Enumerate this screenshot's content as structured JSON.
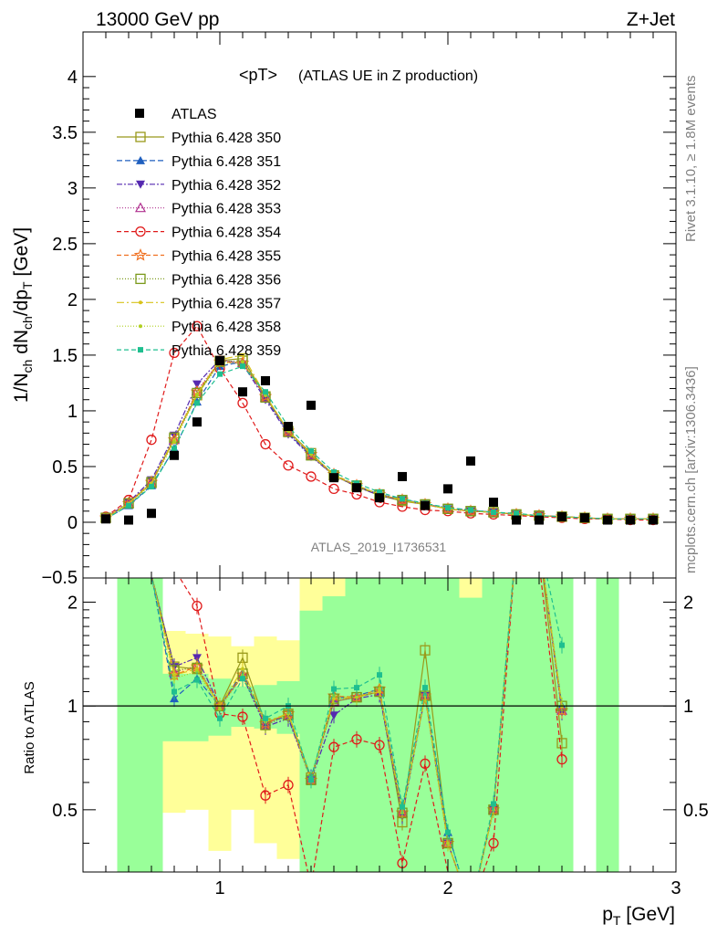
{
  "header": {
    "left": "13000 GeV pp",
    "right": "Z+Jet"
  },
  "side_labels": {
    "rivet": "Rivet 3.1.10, ≥ 1.8M events",
    "mcplots": "mcplots.cern.ch [arXiv:1306.3436]"
  },
  "chart_data": [
    {
      "type": "scatter",
      "title": "<pT> (ATLAS UE in Z production)",
      "title_main": "<pT>",
      "title_sub": " (ATLAS UE in Z production)",
      "xlabel": "p_T [GeV]",
      "ylabel": "1/N_ch dN_ch/dp_T [GeV]",
      "xlim": [
        0.4,
        3.0
      ],
      "ylim": [
        -0.5,
        4.4
      ],
      "yticks": [
        "0",
        "0.5",
        "1",
        "1.5",
        "2",
        "2.5",
        "3",
        "3.5",
        "4"
      ],
      "ytick_top": "−0.5",
      "watermark": "ATLAS_2019_I1736531",
      "legend_position": "top-left",
      "x": [
        0.5,
        0.6,
        0.7,
        0.8,
        0.9,
        1.0,
        1.1,
        1.2,
        1.3,
        1.4,
        1.5,
        1.6,
        1.7,
        1.8,
        1.9,
        2.0,
        2.1,
        2.2,
        2.3,
        2.4,
        2.5,
        2.6,
        2.7,
        2.8,
        2.9
      ],
      "atlas": [
        0.03,
        0.02,
        0.08,
        0.6,
        0.9,
        1.45,
        1.17,
        1.27,
        0.86,
        1.05,
        0.4,
        0.31,
        0.22,
        0.41,
        0.15,
        0.3,
        0.55,
        0.18,
        0.02,
        0.02,
        0.05,
        0.04,
        0.02,
        0.02,
        0.02
      ],
      "series": [
        {
          "name": "Pythia 6.428 350",
          "color": "#99991a",
          "marker": "open-square",
          "dash": "",
          "values": [
            0.04,
            0.17,
            0.35,
            0.75,
            1.14,
            1.45,
            1.47,
            1.13,
            0.82,
            0.62,
            0.42,
            0.32,
            0.24,
            0.19,
            0.16,
            0.12,
            0.1,
            0.09,
            0.07,
            0.06,
            0.05,
            0.04,
            0.03,
            0.03,
            0.03
          ]
        },
        {
          "name": "Pythia 6.428 351",
          "color": "#1f5fbf",
          "marker": "filled-triangle-up",
          "dash": "6,3",
          "values": [
            0.03,
            0.15,
            0.33,
            0.66,
            1.08,
            1.4,
            1.44,
            1.12,
            0.8,
            0.6,
            0.42,
            0.33,
            0.25,
            0.21,
            0.16,
            0.13,
            0.11,
            0.09,
            0.07,
            0.06,
            0.05,
            0.04,
            0.03,
            0.03,
            0.03
          ]
        },
        {
          "name": "Pythia 6.428 352",
          "color": "#5529b0",
          "marker": "filled-triangle-down",
          "dash": "6,2,2,2",
          "values": [
            0.04,
            0.18,
            0.38,
            0.78,
            1.24,
            1.46,
            1.42,
            1.1,
            0.79,
            0.59,
            0.42,
            0.32,
            0.24,
            0.2,
            0.16,
            0.12,
            0.1,
            0.09,
            0.07,
            0.06,
            0.05,
            0.04,
            0.03,
            0.03,
            0.03
          ]
        },
        {
          "name": "Pythia 6.428 353",
          "color": "#b0308f",
          "marker": "open-triangle-up",
          "dash": "1,2",
          "values": [
            0.04,
            0.17,
            0.36,
            0.74,
            1.18,
            1.45,
            1.43,
            1.12,
            0.81,
            0.6,
            0.42,
            0.33,
            0.25,
            0.2,
            0.16,
            0.12,
            0.1,
            0.09,
            0.07,
            0.06,
            0.05,
            0.04,
            0.03,
            0.03,
            0.03
          ]
        },
        {
          "name": "Pythia 6.428 354",
          "color": "#e01a1a",
          "marker": "open-circle",
          "dash": "5,3",
          "values": [
            0.05,
            0.2,
            0.74,
            1.52,
            1.76,
            1.38,
            1.07,
            0.7,
            0.51,
            0.41,
            0.3,
            0.25,
            0.18,
            0.14,
            0.11,
            0.1,
            0.08,
            0.07,
            0.06,
            0.05,
            0.04,
            0.03,
            0.03,
            0.02,
            0.02
          ]
        },
        {
          "name": "Pythia 6.428 355",
          "color": "#f07020",
          "marker": "open-star",
          "dash": "5,3",
          "values": [
            0.04,
            0.17,
            0.36,
            0.74,
            1.17,
            1.44,
            1.43,
            1.13,
            0.82,
            0.61,
            0.43,
            0.33,
            0.25,
            0.2,
            0.16,
            0.12,
            0.1,
            0.09,
            0.07,
            0.06,
            0.05,
            0.04,
            0.03,
            0.03,
            0.03
          ]
        },
        {
          "name": "Pythia 6.428 356",
          "color": "#7a991a",
          "marker": "open-square",
          "dash": "1,2",
          "values": [
            0.04,
            0.17,
            0.36,
            0.76,
            1.16,
            1.44,
            1.45,
            1.12,
            0.81,
            0.6,
            0.42,
            0.33,
            0.25,
            0.2,
            0.16,
            0.12,
            0.1,
            0.09,
            0.07,
            0.06,
            0.05,
            0.04,
            0.03,
            0.03,
            0.03
          ]
        },
        {
          "name": "Pythia 6.428 357",
          "color": "#d8c21a",
          "marker": "small-dot",
          "dash": "8,3,2,3",
          "values": [
            0.04,
            0.17,
            0.35,
            0.74,
            1.15,
            1.46,
            1.5,
            1.14,
            0.82,
            0.61,
            0.42,
            0.33,
            0.25,
            0.2,
            0.16,
            0.12,
            0.1,
            0.09,
            0.07,
            0.06,
            0.05,
            0.04,
            0.03,
            0.03,
            0.03
          ]
        },
        {
          "name": "Pythia 6.428 358",
          "color": "#b0d020",
          "marker": "small-dot",
          "dash": "1,2",
          "values": [
            0.04,
            0.16,
            0.34,
            0.72,
            1.14,
            1.42,
            1.44,
            1.14,
            0.82,
            0.61,
            0.43,
            0.33,
            0.25,
            0.2,
            0.16,
            0.12,
            0.1,
            0.09,
            0.07,
            0.06,
            0.05,
            0.04,
            0.03,
            0.03,
            0.03
          ]
        },
        {
          "name": "Pythia 6.428 359",
          "color": "#1fbf8f",
          "marker": "filled-square-small",
          "dash": "5,3",
          "values": [
            0.03,
            0.15,
            0.32,
            0.66,
            1.07,
            1.33,
            1.4,
            1.17,
            0.86,
            0.64,
            0.45,
            0.35,
            0.27,
            0.21,
            0.17,
            0.13,
            0.11,
            0.09,
            0.08,
            0.06,
            0.05,
            0.04,
            0.03,
            0.03,
            0.03
          ]
        }
      ],
      "legend_atlas_label": "ATLAS"
    },
    {
      "type": "line",
      "ylabel": "Ratio to ATLAS",
      "xlabel": "p_T [GeV]",
      "xlim": [
        0.4,
        3.0
      ],
      "ylim": [
        0.33,
        2.35
      ],
      "yticks": [
        "0.5",
        "1",
        "2"
      ],
      "xticks": [
        "1",
        "2",
        "3"
      ],
      "reference": 1.0,
      "bands": {
        "x_bins": [
          [
            0.55,
            0.65
          ],
          [
            0.65,
            0.75
          ],
          [
            0.75,
            0.85
          ],
          [
            0.85,
            0.95
          ],
          [
            0.95,
            1.05
          ],
          [
            1.05,
            1.15
          ],
          [
            1.15,
            1.25
          ],
          [
            1.25,
            1.35
          ],
          [
            1.35,
            1.45
          ],
          [
            1.45,
            1.55
          ],
          [
            1.55,
            1.65
          ],
          [
            1.65,
            1.75
          ],
          [
            1.75,
            1.85
          ],
          [
            1.85,
            1.95
          ],
          [
            1.95,
            2.05
          ],
          [
            2.05,
            2.15
          ],
          [
            2.15,
            2.25
          ],
          [
            2.25,
            2.35
          ],
          [
            2.35,
            2.45
          ],
          [
            2.45,
            2.55
          ],
          [
            2.65,
            2.75
          ]
        ],
        "green": [
          [
            0.33,
            2.35
          ],
          [
            0.33,
            2.35
          ],
          [
            0.79,
            1.24
          ],
          [
            0.79,
            1.24
          ],
          [
            0.82,
            1.2
          ],
          [
            0.87,
            1.14
          ],
          [
            0.86,
            1.15
          ],
          [
            0.83,
            1.18
          ],
          [
            0.33,
            2.35
          ],
          [
            0.33,
            2.35
          ],
          [
            0.33,
            2.35
          ],
          [
            0.33,
            2.35
          ],
          [
            0.33,
            2.35
          ],
          [
            0.33,
            2.35
          ],
          [
            0.33,
            2.35
          ],
          [
            0.33,
            2.35
          ],
          [
            0.33,
            2.35
          ],
          [
            0.33,
            2.35
          ],
          [
            0.33,
            2.35
          ],
          [
            0.33,
            2.35
          ],
          [
            0.33,
            2.35
          ]
        ],
        "yellow": [
          [
            0.33,
            2.35
          ],
          [
            0.33,
            2.35
          ],
          [
            0.49,
            1.65
          ],
          [
            0.5,
            1.62
          ],
          [
            0.38,
            1.59
          ],
          [
            0.5,
            1.49
          ],
          [
            0.4,
            1.59
          ],
          [
            0.36,
            1.55
          ],
          [
            0.33,
            2.35
          ],
          [
            0.33,
            2.35
          ],
          [
            0.33,
            2.35
          ],
          [
            0.33,
            2.35
          ],
          [
            0.33,
            2.35
          ],
          [
            0.33,
            2.35
          ],
          [
            0.33,
            2.35
          ],
          [
            0.33,
            2.35
          ],
          [
            0.33,
            2.35
          ],
          [
            0.33,
            2.35
          ],
          [
            0.33,
            2.35
          ],
          [
            0.33,
            2.35
          ],
          [
            0.33,
            2.35
          ]
        ],
        "white_top": [
          [
            2.35,
            2.35
          ],
          [
            2.35,
            2.35
          ],
          [
            2.35,
            2.35
          ],
          [
            2.35,
            2.35
          ],
          [
            2.35,
            2.35
          ],
          [
            2.35,
            2.35
          ],
          [
            2.35,
            2.35
          ],
          [
            2.35,
            2.35
          ],
          [
            1.89,
            2.35
          ],
          [
            2.08,
            2.35
          ],
          [
            2.35,
            2.35
          ],
          [
            2.35,
            2.35
          ],
          [
            2.35,
            2.35
          ],
          [
            2.35,
            2.35
          ],
          [
            2.35,
            2.35
          ],
          [
            2.06,
            2.35
          ],
          [
            2.35,
            2.35
          ],
          [
            2.35,
            2.35
          ],
          [
            2.35,
            2.35
          ],
          [
            2.35,
            2.35
          ],
          [
            2.35,
            2.35
          ]
        ]
      },
      "ratio_series": [
        {
          "name": "Pythia 6.428 350",
          "values": [
            2.4,
            2.4,
            1.3,
            1.28,
            1.0,
            1.38,
            0.89,
            0.95,
            0.62,
            1.03,
            1.06,
            1.1,
            0.46,
            1.45,
            0.4,
            0.18,
            0.5,
            3.5,
            3.0,
            0.78
          ]
        },
        {
          "name": "Pythia 6.428 351",
          "values": [
            2.4,
            2.4,
            1.05,
            1.2,
            1.0,
            1.25,
            0.9,
            0.93,
            0.62,
            1.05,
            1.07,
            1.12,
            0.5,
            1.07,
            0.43,
            0.2,
            0.5,
            3.5,
            3.0,
            1.0
          ]
        },
        {
          "name": "Pythia 6.428 352",
          "values": [
            2.4,
            2.4,
            1.3,
            1.38,
            1.0,
            1.22,
            0.87,
            0.92,
            0.61,
            0.94,
            1.05,
            1.08,
            0.48,
            1.07,
            0.4,
            0.19,
            0.5,
            3.5,
            3.0,
            0.96
          ]
        },
        {
          "name": "Pythia 6.428 353",
          "values": [
            2.4,
            2.4,
            1.25,
            1.31,
            1.0,
            1.23,
            0.88,
            0.94,
            0.61,
            1.03,
            1.06,
            1.1,
            0.49,
            1.07,
            0.4,
            0.19,
            0.5,
            3.5,
            3.0,
            0.97
          ]
        },
        {
          "name": "Pythia 6.428 354",
          "values": [
            2.4,
            2.4,
            2.5,
            1.95,
            0.95,
            0.93,
            0.55,
            0.59,
            0.3,
            0.76,
            0.8,
            0.77,
            0.35,
            0.68,
            0.33,
            0.16,
            0.4,
            3.0,
            2.6,
            0.7
          ]
        },
        {
          "name": "Pythia 6.428 355",
          "values": [
            2.4,
            2.4,
            1.23,
            1.3,
            1.0,
            1.23,
            0.89,
            0.95,
            0.61,
            1.07,
            1.06,
            1.12,
            0.49,
            1.07,
            0.4,
            0.19,
            0.5,
            3.5,
            3.0,
            0.97
          ]
        },
        {
          "name": "Pythia 6.428 356",
          "values": [
            2.4,
            2.4,
            1.27,
            1.29,
            1.0,
            1.24,
            0.88,
            0.94,
            0.61,
            1.05,
            1.06,
            1.1,
            0.49,
            1.07,
            0.4,
            0.19,
            0.5,
            3.5,
            3.0,
            1.0
          ]
        },
        {
          "name": "Pythia 6.428 357",
          "values": [
            2.4,
            2.4,
            1.23,
            1.28,
            1.0,
            1.28,
            0.9,
            0.95,
            0.61,
            1.05,
            1.06,
            1.1,
            0.49,
            1.07,
            0.4,
            0.19,
            0.5,
            3.5,
            3.0,
            1.0
          ]
        },
        {
          "name": "Pythia 6.428 358",
          "values": [
            2.4,
            2.4,
            1.2,
            1.26,
            0.98,
            1.23,
            0.9,
            0.95,
            0.61,
            1.07,
            1.06,
            1.12,
            0.49,
            1.07,
            0.4,
            0.19,
            0.5,
            3.5,
            3.0,
            1.0
          ]
        },
        {
          "name": "Pythia 6.428 359",
          "values": [
            2.4,
            2.4,
            1.1,
            1.19,
            0.92,
            1.2,
            0.92,
            1.0,
            0.61,
            1.12,
            1.13,
            1.23,
            0.51,
            1.13,
            0.43,
            0.2,
            0.52,
            3.5,
            3.0,
            1.5
          ]
        }
      ]
    }
  ]
}
